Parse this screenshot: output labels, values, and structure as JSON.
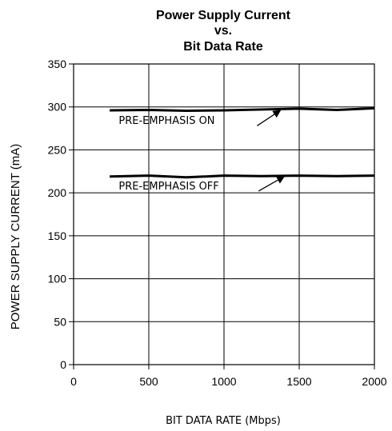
{
  "chart_data": {
    "type": "line",
    "title_lines": [
      "Power Supply Current",
      "vs.",
      "Bit Data Rate"
    ],
    "xlabel": "BIT DATA RATE (Mbps)",
    "ylabel": "POWER SUPPLY CURRENT (mA)",
    "xlim": [
      0,
      2000
    ],
    "ylim": [
      0,
      350
    ],
    "x_ticks": [
      0,
      500,
      1000,
      1500,
      2000
    ],
    "y_ticks": [
      0,
      50,
      100,
      150,
      200,
      250,
      300,
      350
    ],
    "grid": true,
    "series": [
      {
        "name": "PRE-EMPHASIS ON",
        "x": [
          240,
          500,
          750,
          1000,
          1250,
          1500,
          1750,
          2000
        ],
        "y": [
          296,
          296.5,
          295.5,
          296,
          297,
          298,
          296.5,
          298.5
        ]
      },
      {
        "name": "PRE-EMPHASIS OFF",
        "x": [
          240,
          500,
          750,
          1000,
          1250,
          1500,
          1750,
          2000
        ],
        "y": [
          219,
          220,
          218,
          220,
          219.5,
          220,
          219.5,
          220
        ]
      }
    ],
    "annotations": [
      {
        "text": "PRE-EMPHASIS ON",
        "label_at": [
          300,
          280
        ],
        "arrow_from": [
          1220,
          278
        ],
        "arrow_to": [
          1375,
          296
        ]
      },
      {
        "text": "PRE-EMPHASIS OFF",
        "label_at": [
          300,
          204
        ],
        "arrow_from": [
          1230,
          202
        ],
        "arrow_to": [
          1400,
          219
        ]
      }
    ]
  }
}
